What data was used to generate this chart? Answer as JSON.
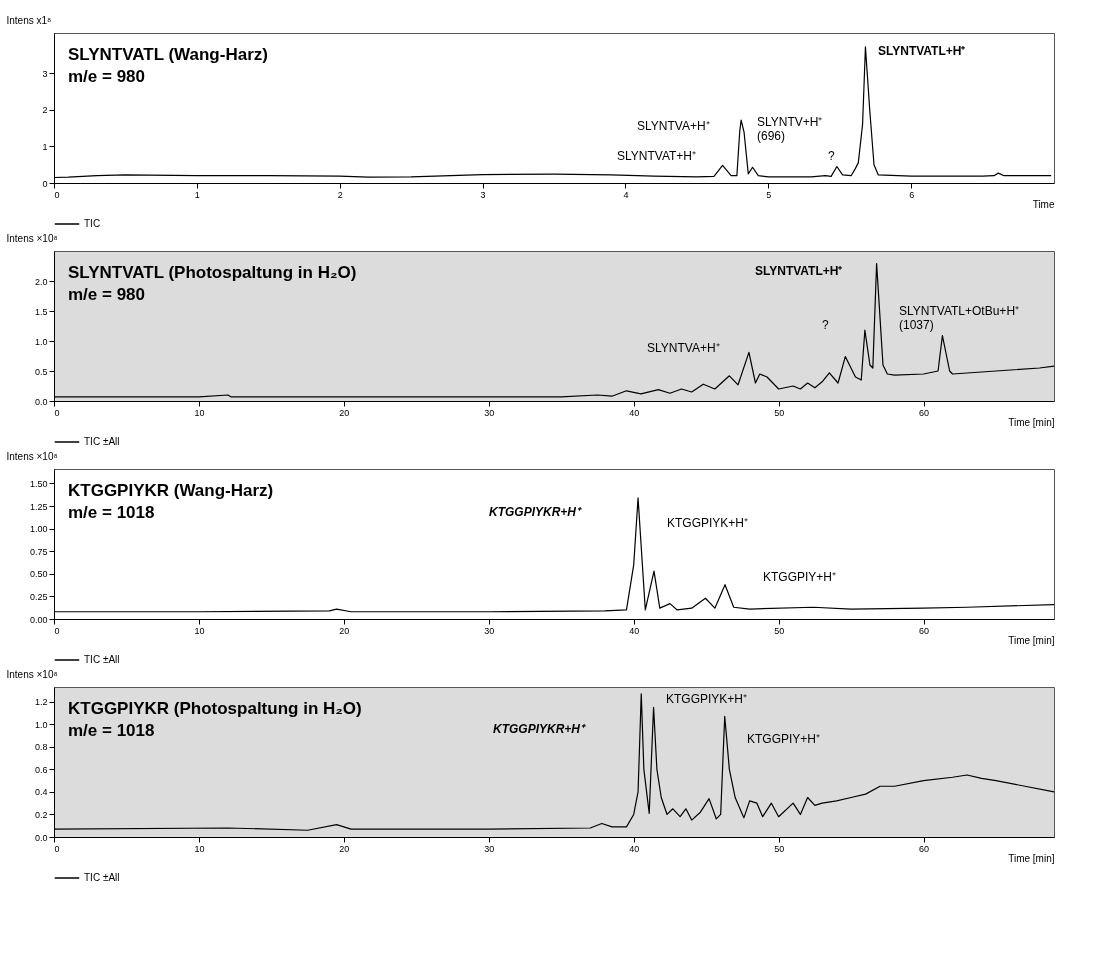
{
  "chart_data": [
    {
      "type": "line",
      "title": "SLYNTVATL (Wang-Harz)",
      "subtitle": "m/e = 980",
      "xlabel": "Time",
      "ylabel": "Intens x1⁸",
      "xlim": [
        0,
        7
      ],
      "xticks": [
        0,
        1,
        2,
        3,
        4,
        5,
        6
      ],
      "ylim": [
        0,
        4.1
      ],
      "yticks": [
        0,
        1,
        2,
        3
      ],
      "legend": "bottom",
      "series": [
        {
          "name": "TIC",
          "color": "#000000",
          "x": [
            0,
            0.1,
            0.3,
            0.5,
            1.0,
            1.5,
            2.0,
            2.2,
            2.5,
            3.0,
            3.5,
            3.9,
            4.2,
            4.5,
            4.62,
            4.68,
            4.74,
            4.78,
            4.8,
            4.81,
            4.83,
            4.86,
            4.89,
            4.93,
            5.0,
            5.3,
            5.4,
            5.44,
            5.48,
            5.52,
            5.58,
            5.61,
            5.63,
            5.66,
            5.68,
            5.71,
            5.74,
            5.77,
            6.0,
            6.5,
            6.58,
            6.61,
            6.65,
            6.98
          ],
          "values": [
            0.15,
            0.16,
            0.2,
            0.22,
            0.2,
            0.2,
            0.19,
            0.16,
            0.17,
            0.23,
            0.24,
            0.22,
            0.19,
            0.17,
            0.18,
            0.48,
            0.2,
            0.2,
            1.4,
            1.72,
            1.4,
            0.25,
            0.43,
            0.2,
            0.17,
            0.17,
            0.2,
            0.18,
            0.45,
            0.22,
            0.2,
            0.4,
            0.55,
            1.6,
            3.72,
            2.0,
            0.5,
            0.22,
            0.19,
            0.19,
            0.2,
            0.27,
            0.2,
            0.2
          ]
        }
      ],
      "annotations": [
        "SLYNTVATL+H⁺",
        "SLYNTVA+H⁺",
        "SLYNTV+H⁺\n(696)",
        "SLYNTVAT+H⁺",
        "?"
      ]
    },
    {
      "type": "line",
      "title": "SLYNTVATL (Photospaltung in H₂O)",
      "subtitle": "m/e = 980",
      "xlabel": "Time [min]",
      "ylabel": "Intens ×10⁸",
      "xlim": [
        0,
        69
      ],
      "xticks": [
        0,
        10,
        20,
        30,
        40,
        50,
        60
      ],
      "ylim": [
        0,
        2.5
      ],
      "yticks": [
        {
          "value": 0,
          "label": "0.0"
        },
        0.5,
        {
          "value": 1,
          "label": "1.0"
        },
        1.5,
        {
          "value": 2,
          "label": "2.0"
        }
      ],
      "legend": "bottom",
      "series": [
        {
          "name": "TIC ±All",
          "color": "#000000",
          "x": [
            0,
            10,
            12,
            12.2,
            20,
            30,
            35,
            37.5,
            38.5,
            39.5,
            40.5,
            41.7,
            42.5,
            43.3,
            44,
            44.8,
            45.6,
            46.6,
            47.2,
            47.95,
            48.4,
            48.7,
            49.2,
            50,
            51,
            51.5,
            52,
            52.5,
            53,
            53.5,
            54.1,
            54.6,
            55.3,
            55.7,
            55.95,
            56.3,
            56.5,
            56.76,
            57.2,
            57.5,
            58,
            60,
            61,
            61.3,
            61.8,
            62,
            65,
            68,
            69
          ],
          "values": [
            0.07,
            0.07,
            0.1,
            0.07,
            0.07,
            0.07,
            0.07,
            0.1,
            0.08,
            0.17,
            0.12,
            0.19,
            0.13,
            0.2,
            0.15,
            0.28,
            0.2,
            0.42,
            0.27,
            0.81,
            0.3,
            0.45,
            0.4,
            0.2,
            0.25,
            0.2,
            0.3,
            0.22,
            0.32,
            0.47,
            0.3,
            0.74,
            0.4,
            0.35,
            1.18,
            0.6,
            0.55,
            2.29,
            0.6,
            0.45,
            0.43,
            0.45,
            0.5,
            1.09,
            0.5,
            0.45,
            0.5,
            0.55,
            0.58
          ]
        }
      ],
      "annotations": [
        "SLYNTVATL+H⁺",
        "SLYNTVATL+OtBu+H⁺\n(1037)",
        "SLYNTVA+H⁺",
        "?"
      ]
    },
    {
      "type": "line",
      "title": "KTGGPIYKR (Wang-Harz)",
      "subtitle": "m/e = 1018",
      "xlabel": "Time [min]",
      "ylabel": "Intens ×10⁸",
      "xlim": [
        0,
        69
      ],
      "xticks": [
        0,
        10,
        20,
        30,
        40,
        50,
        60
      ],
      "ylim": [
        0,
        1.66
      ],
      "yticks": [
        {
          "value": 0,
          "label": "0.00"
        },
        0.25,
        {
          "value": 0.5,
          "label": "0.50"
        },
        0.75,
        {
          "value": 1,
          "label": "1.00"
        },
        1.25,
        {
          "value": 1.5,
          "label": "1.50"
        }
      ],
      "legend": "bottom",
      "series": [
        {
          "name": "TIC ±All",
          "color": "#000000",
          "x": [
            0,
            10,
            19,
            19.5,
            20.5,
            30,
            38,
            39.5,
            40,
            40.3,
            40.8,
            41.4,
            41.8,
            42.5,
            43,
            44,
            44.95,
            45.6,
            46.3,
            46.9,
            48,
            52.4,
            55,
            60,
            63,
            69
          ],
          "values": [
            0.08,
            0.08,
            0.09,
            0.11,
            0.08,
            0.08,
            0.09,
            0.1,
            0.6,
            1.34,
            0.1,
            0.53,
            0.12,
            0.17,
            0.1,
            0.12,
            0.23,
            0.12,
            0.38,
            0.13,
            0.11,
            0.13,
            0.11,
            0.12,
            0.13,
            0.16
          ]
        }
      ],
      "annotations": [
        "KTGGPIYKR+H⁺",
        "KTGGPIYK+H⁺",
        "KTGGPIY+H⁺"
      ]
    },
    {
      "type": "line",
      "title": "KTGGPIYKR (Photospaltung in H₂O)",
      "subtitle": "m/e = 1018",
      "xlabel": "Time [min]",
      "ylabel": "Intens ×10⁸",
      "xlim": [
        0,
        69
      ],
      "xticks": [
        0,
        10,
        20,
        30,
        40,
        50,
        60
      ],
      "ylim": [
        0,
        1.33
      ],
      "yticks": [
        {
          "value": 0,
          "label": "0.0"
        },
        0.2,
        0.4,
        0.6,
        0.8,
        {
          "value": 1,
          "label": "1.0"
        },
        1.2
      ],
      "legend": "bottom",
      "series": [
        {
          "name": "TIC ±All",
          "color": "#000000",
          "x": [
            0,
            12,
            17.5,
            19.5,
            20.5,
            30,
            37,
            37.8,
            38.5,
            39.5,
            40,
            40.3,
            40.52,
            40.7,
            41.07,
            41.37,
            41.6,
            41.9,
            42.3,
            42.7,
            43.2,
            43.6,
            44,
            44.6,
            45.2,
            45.7,
            46.0,
            46.28,
            46.6,
            47,
            47.6,
            48,
            48.5,
            48.9,
            49.5,
            50,
            51,
            51.5,
            52,
            52.5,
            53,
            54,
            55,
            56,
            57,
            58,
            60,
            62,
            63,
            64,
            65,
            67,
            69
          ],
          "values": [
            0.07,
            0.08,
            0.06,
            0.11,
            0.07,
            0.07,
            0.08,
            0.12,
            0.09,
            0.09,
            0.2,
            0.4,
            1.27,
            0.6,
            0.21,
            1.15,
            0.6,
            0.35,
            0.2,
            0.25,
            0.18,
            0.25,
            0.15,
            0.22,
            0.34,
            0.16,
            0.2,
            1.07,
            0.6,
            0.35,
            0.17,
            0.32,
            0.3,
            0.18,
            0.3,
            0.18,
            0.3,
            0.2,
            0.35,
            0.28,
            0.3,
            0.32,
            0.35,
            0.38,
            0.45,
            0.45,
            0.5,
            0.53,
            0.55,
            0.52,
            0.5,
            0.45,
            0.4
          ]
        }
      ],
      "annotations": [
        "KTGGPIYKR+H⁺",
        "KTGGPIYK+H⁺",
        "KTGGPIY+H⁺"
      ]
    }
  ]
}
